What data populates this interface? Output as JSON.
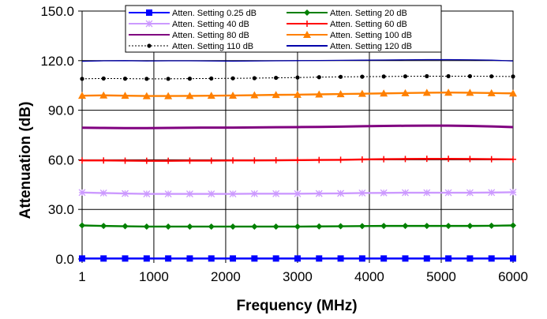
{
  "chart_data": {
    "type": "line",
    "title": "",
    "xlabel": "Frequency (MHz)",
    "ylabel": "Attenuation (dB)",
    "xlim": [
      1,
      6000
    ],
    "ylim": [
      0,
      150
    ],
    "x_ticks": [
      "1",
      "1000",
      "2000",
      "3000",
      "4000",
      "5000",
      "6000"
    ],
    "y_ticks": [
      "0.0",
      "30.0",
      "60.0",
      "90.0",
      "120.0",
      "150.0"
    ],
    "grid": true,
    "legend_position": "top",
    "x": [
      1,
      300,
      600,
      900,
      1200,
      1500,
      1800,
      2100,
      2400,
      2700,
      3000,
      3300,
      3600,
      3900,
      4200,
      4500,
      4800,
      5100,
      5400,
      5700,
      6000
    ],
    "series": [
      {
        "name": "Atten. Setting 0.25 dB",
        "color": "#0000ff",
        "marker": "square",
        "values": [
          0.3,
          0.3,
          0.3,
          0.3,
          0.3,
          0.3,
          0.3,
          0.3,
          0.3,
          0.3,
          0.3,
          0.3,
          0.3,
          0.3,
          0.3,
          0.3,
          0.3,
          0.3,
          0.3,
          0.3,
          0.3
        ]
      },
      {
        "name": "Atten. Setting 20 dB",
        "color": "#008000",
        "marker": "diamond",
        "values": [
          20.3,
          20.0,
          19.8,
          19.6,
          19.6,
          19.6,
          19.6,
          19.6,
          19.6,
          19.6,
          19.6,
          19.7,
          19.8,
          19.9,
          20.0,
          20.0,
          20.0,
          20.0,
          20.0,
          20.1,
          20.3
        ]
      },
      {
        "name": "Atten. Setting 40 dB",
        "color": "#cc99ff",
        "marker": "asterisk",
        "values": [
          40.2,
          39.9,
          39.6,
          39.4,
          39.4,
          39.4,
          39.4,
          39.4,
          39.5,
          39.5,
          39.5,
          39.6,
          39.7,
          39.9,
          40.0,
          40.1,
          40.1,
          40.1,
          40.1,
          40.2,
          40.4
        ]
      },
      {
        "name": "Atten. Setting 60 dB",
        "color": "#ff0000",
        "marker": "plus",
        "values": [
          59.6,
          59.6,
          59.5,
          59.4,
          59.4,
          59.5,
          59.5,
          59.6,
          59.6,
          59.7,
          59.8,
          59.9,
          60.0,
          60.2,
          60.4,
          60.5,
          60.6,
          60.6,
          60.5,
          60.4,
          60.3
        ]
      },
      {
        "name": "Atten. Setting 80 dB",
        "color": "#800080",
        "marker": "none",
        "values": [
          79.4,
          79.3,
          79.2,
          79.2,
          79.3,
          79.4,
          79.5,
          79.5,
          79.6,
          79.7,
          79.8,
          79.9,
          80.1,
          80.3,
          80.5,
          80.6,
          80.7,
          80.7,
          80.5,
          80.2,
          79.8
        ]
      },
      {
        "name": "Atten. Setting 100 dB",
        "color": "#ff8000",
        "marker": "triangle",
        "values": [
          98.8,
          99.0,
          98.8,
          98.6,
          98.6,
          98.7,
          98.8,
          98.9,
          99.1,
          99.3,
          99.4,
          99.6,
          99.8,
          100.0,
          100.2,
          100.4,
          100.6,
          100.7,
          100.6,
          100.4,
          100.2
        ]
      },
      {
        "name": "Atten. Setting 110 dB",
        "color": "#000000",
        "marker": "circle",
        "dashed": true,
        "values": [
          109.0,
          109.2,
          109.1,
          109.0,
          109.0,
          109.1,
          109.2,
          109.3,
          109.4,
          109.6,
          109.8,
          110.0,
          110.2,
          110.3,
          110.4,
          110.5,
          110.6,
          110.6,
          110.6,
          110.5,
          110.4
        ]
      },
      {
        "name": "Atten. Setting 120 dB",
        "color": "#0000aa",
        "marker": "none",
        "values": [
          119.6,
          119.9,
          120.0,
          119.8,
          119.9,
          119.9,
          119.8,
          119.7,
          119.8,
          119.9,
          120.0,
          120.1,
          120.2,
          120.3,
          120.4,
          120.5,
          120.6,
          120.6,
          120.5,
          120.3,
          119.8
        ]
      }
    ]
  }
}
